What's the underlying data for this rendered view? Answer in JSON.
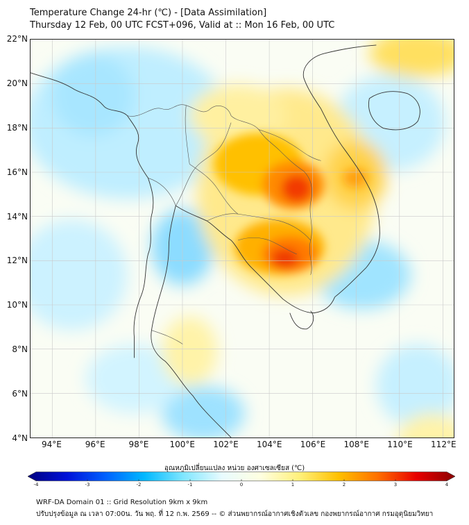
{
  "header": {
    "title_line1": "Temperature Change 24-hr (℃) - [Data Assimilation]",
    "title_line2": "Thursday 12 Feb, 00 UTC FCST+096, Valid at :: Mon 16 Feb, 00 UTC"
  },
  "map": {
    "lat_range": [
      4,
      22
    ],
    "lon_range": [
      93,
      112.5
    ],
    "lat_labels": [
      {
        "value": 22,
        "label": "22°N"
      },
      {
        "value": 20,
        "label": "20°N"
      },
      {
        "value": 18,
        "label": "18°N"
      },
      {
        "value": 16,
        "label": "16°N"
      },
      {
        "value": 14,
        "label": "14°N"
      },
      {
        "value": 12,
        "label": "12°N"
      },
      {
        "value": 10,
        "label": "10°N"
      },
      {
        "value": 8,
        "label": "8°N"
      },
      {
        "value": 6,
        "label": "6°N"
      },
      {
        "value": 4,
        "label": "4°N"
      }
    ],
    "lon_labels": [
      {
        "value": 94,
        "label": "94°E"
      },
      {
        "value": 96,
        "label": "96°E"
      },
      {
        "value": 98,
        "label": "98°E"
      },
      {
        "value": 100,
        "label": "100°E"
      },
      {
        "value": 102,
        "label": "102°E"
      },
      {
        "value": 104,
        "label": "104°E"
      },
      {
        "value": 106,
        "label": "106°E"
      },
      {
        "value": 108,
        "label": "108°E"
      },
      {
        "value": 110,
        "label": "110°E"
      },
      {
        "value": 112,
        "label": "112°E"
      }
    ]
  },
  "colorbar": {
    "title": "อุณหภูมิเปลี่ยนแปลง หน่วย องศาเซลเซียส (℃)",
    "range": [
      -4,
      4
    ],
    "ticks": [
      {
        "value": -4,
        "label": "-4"
      },
      {
        "value": -3,
        "label": "-3"
      },
      {
        "value": -2,
        "label": "-2"
      },
      {
        "value": -1,
        "label": "-1"
      },
      {
        "value": 0,
        "label": "0"
      },
      {
        "value": 1,
        "label": "1"
      },
      {
        "value": 2,
        "label": "2"
      },
      {
        "value": 3,
        "label": "3"
      },
      {
        "value": 4,
        "label": "4"
      }
    ],
    "colors": [
      "#00007f",
      "#0010d8",
      "#0060ff",
      "#00b8ff",
      "#7fe6ff",
      "#e8fbff",
      "#ffffe0",
      "#fff07a",
      "#ffc000",
      "#ff7000",
      "#e80000",
      "#8b0000"
    ]
  },
  "footer": {
    "line1": "WRF-DA Domain 01 :: Grid Resolution 9km x 9km",
    "line2": "ปรับปรุงข้อมูล ณ เวลา 07:00น. วัน พฤ. ที่ 12 ก.พ. 2569 -- © ส่วนพยากรณ์อากาศเชิงตัวเลข กองพยากรณ์อากาศ กรมอุตุนิยมวิทยา"
  }
}
